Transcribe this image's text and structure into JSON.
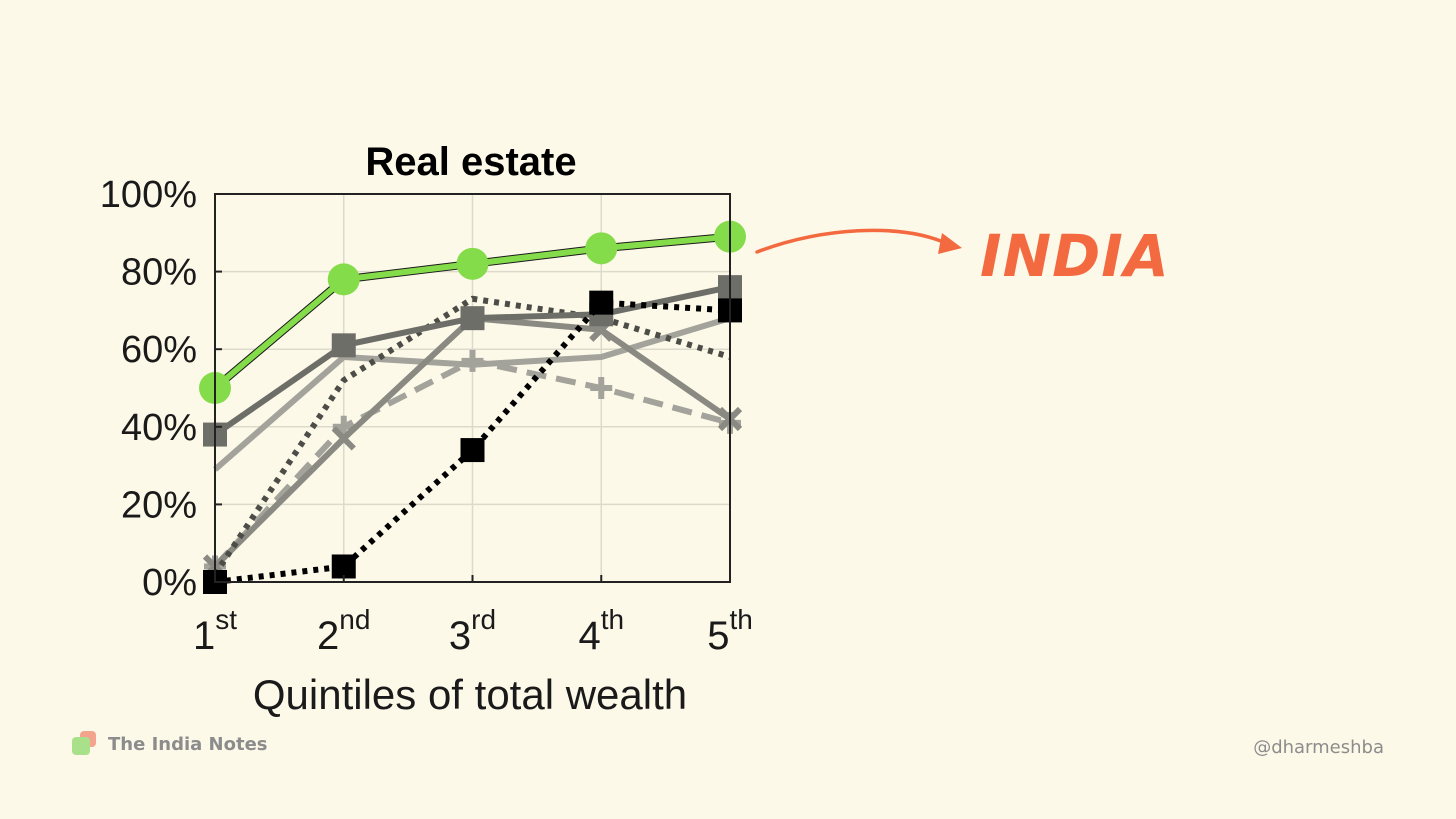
{
  "chart_data": {
    "type": "line",
    "title": "Real estate",
    "xlabel": "Quintiles of total wealth",
    "categories": [
      {
        "num": "1",
        "sup": "st"
      },
      {
        "num": "2",
        "sup": "nd"
      },
      {
        "num": "3",
        "sup": "rd"
      },
      {
        "num": "4",
        "sup": "th"
      },
      {
        "num": "5",
        "sup": "th"
      }
    ],
    "ylim": [
      0,
      100
    ],
    "y_ticks": [
      "0%",
      "20%",
      "40%",
      "60%",
      "80%",
      "100%"
    ],
    "y_tick_values": [
      0,
      20,
      40,
      60,
      80,
      100
    ],
    "grid": true,
    "series": [
      {
        "values": [
          29,
          58,
          56,
          58,
          68
        ],
        "color": "#a3a39b",
        "dash": "solid",
        "marker": "none"
      },
      {
        "values": [
          4,
          40,
          57,
          50,
          41
        ],
        "color": "#a3a39b",
        "dash": "dashed",
        "marker": "plus"
      },
      {
        "values": [
          4,
          37,
          68,
          65,
          42
        ],
        "color": "#8a8a83",
        "dash": "solid",
        "marker": "x"
      },
      {
        "values": [
          2,
          52,
          73,
          68,
          58
        ],
        "color": "#4d4d48",
        "dash": "dotted",
        "marker": "none"
      },
      {
        "values": [
          38,
          61,
          68,
          69,
          76
        ],
        "color": "#6e6e69",
        "dash": "solid",
        "marker": "square"
      },
      {
        "values": [
          0,
          4,
          34,
          72,
          70
        ],
        "color": "#000000",
        "dash": "dotted",
        "marker": "square"
      },
      {
        "values": [
          50,
          78,
          82,
          86,
          89
        ],
        "color": "#85dc4a",
        "dash": "solid",
        "marker": "circle"
      }
    ],
    "annotation": {
      "text": "INDIA",
      "color": "#f36a40"
    }
  },
  "footer": {
    "brand": "The India Notes",
    "handle": "@dharmeshba"
  }
}
